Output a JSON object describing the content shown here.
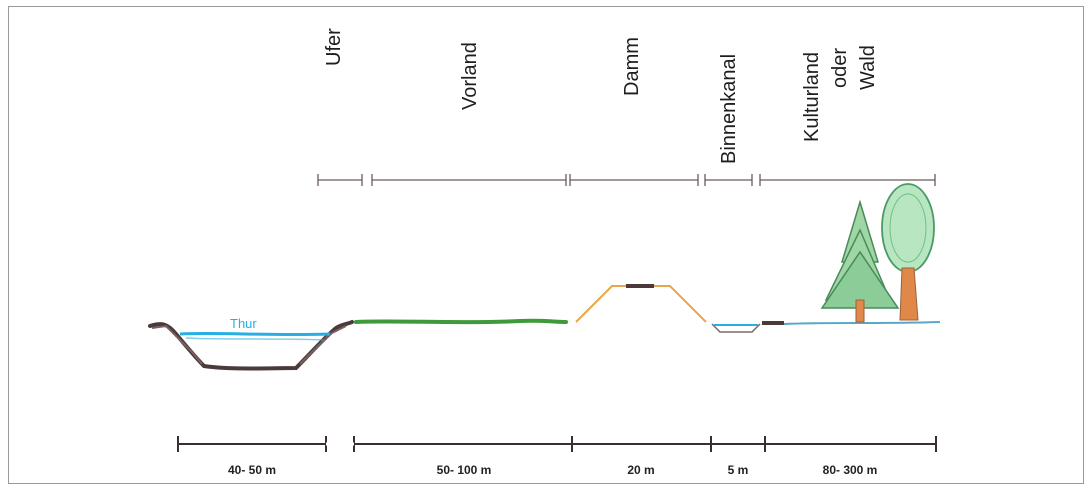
{
  "zones": [
    {
      "label": "Ufer"
    },
    {
      "label": "Vorland"
    },
    {
      "label": "Damm"
    },
    {
      "label": "Binnenkanal"
    },
    {
      "label": "Kulturland oder Wald",
      "lines": [
        "Kulturland",
        "oder",
        "Wald"
      ]
    }
  ],
  "river": {
    "label": "Thur"
  },
  "dimensions": [
    {
      "label": "40- 50 m"
    },
    {
      "label": "50- 100 m"
    },
    {
      "label": "20 m"
    },
    {
      "label": "5 m"
    },
    {
      "label": "80- 300 m"
    }
  ],
  "colors": {
    "water": "#29aee3",
    "riverbed": "#4a3a3a",
    "meadow": "#3f9a3a",
    "dam": "#e8a64a",
    "tree_foliage": "#7fcf9a",
    "tree_trunk": "#e0884a"
  }
}
